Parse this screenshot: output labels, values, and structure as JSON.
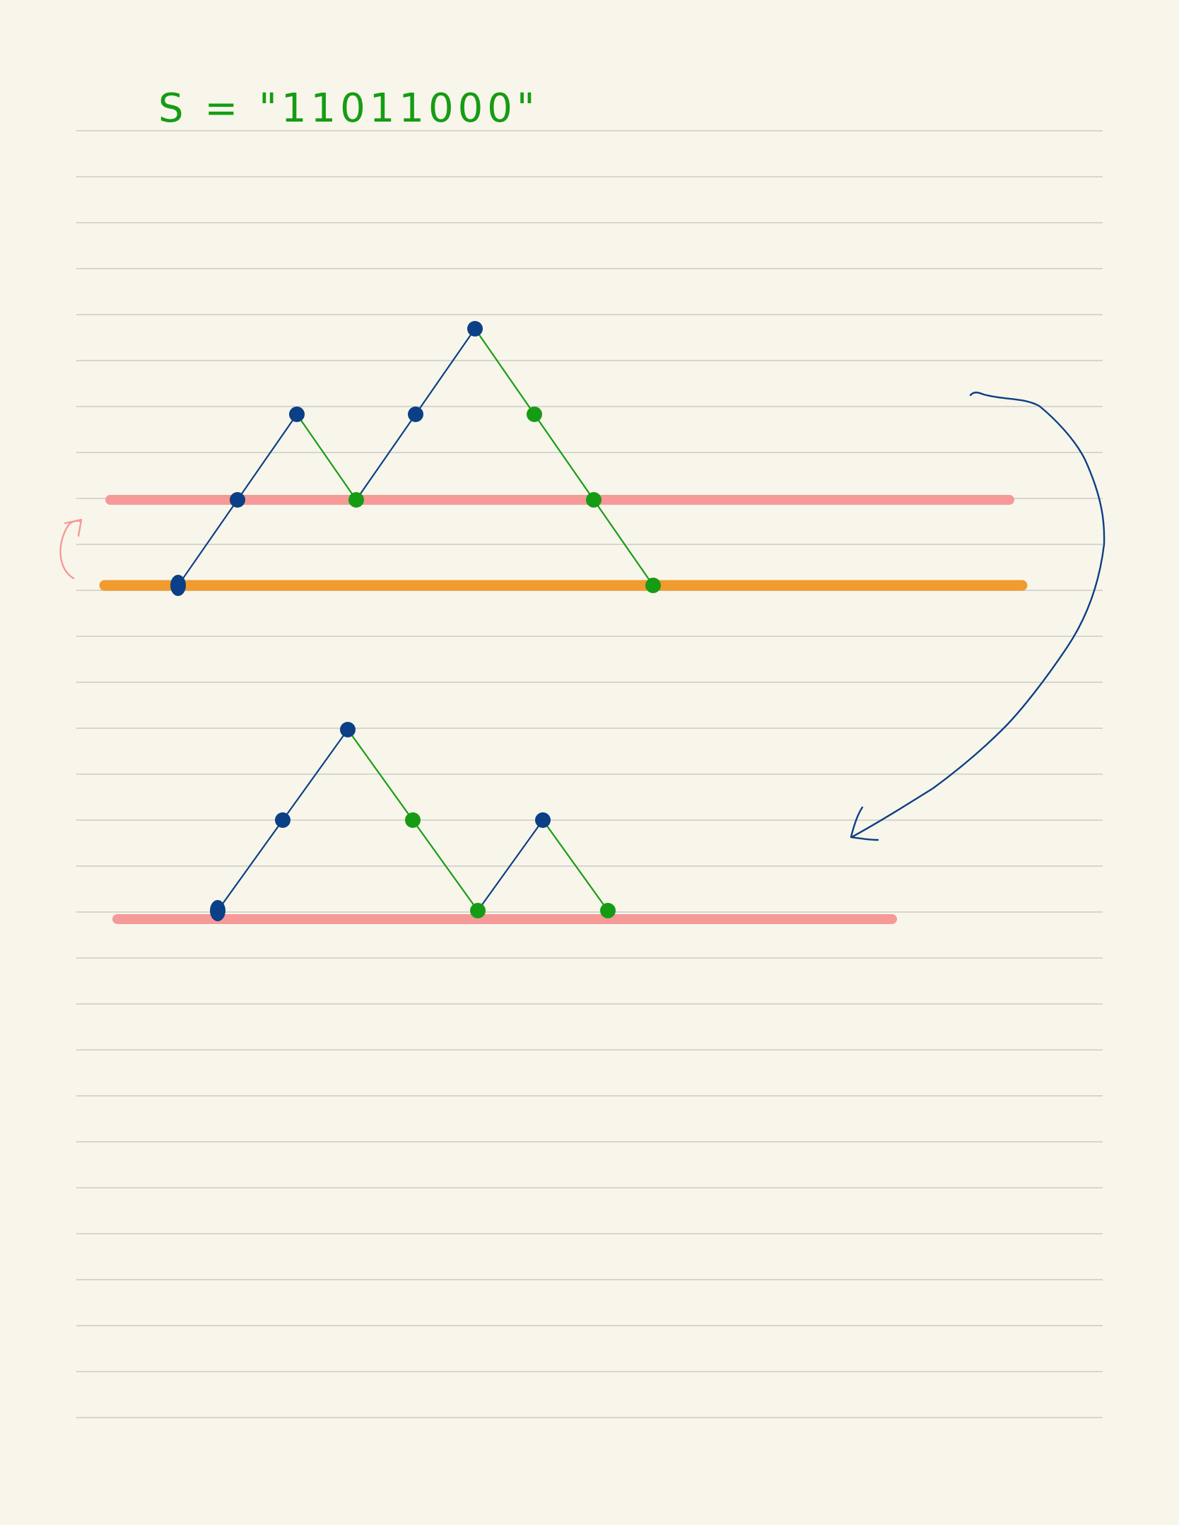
{
  "notebook": {
    "heading_text": "S = \"11011000\"",
    "colors": {
      "paper": "#f8f6ea",
      "ruled_line": "#d6d5d0",
      "up_step_ink": "#0b3f86",
      "down_step_ink": "#159c14",
      "level_highlight_pink": "#f59a98",
      "level_highlight_orange": "#f19a2e",
      "arrow_ink": "#0b3f86",
      "curl_arrow_ink": "#f59a98"
    },
    "icons": {
      "curl_arrow": "curved-arrow-up-icon",
      "transform_arrow": "curved-arrow-down-left-icon"
    }
  },
  "chart_data": [
    {
      "type": "line",
      "description_of_steps": [
        "1",
        "1",
        "0",
        "1",
        "1",
        "0",
        "0",
        "0"
      ],
      "x": [
        0,
        1,
        2,
        3,
        4,
        5,
        6,
        7,
        8
      ],
      "y": [
        0,
        1,
        2,
        1,
        2,
        3,
        2,
        1,
        0
      ],
      "step_colors": [
        "blue",
        "blue",
        "green",
        "blue",
        "blue",
        "green",
        "green",
        "green"
      ],
      "baseline_levels": [
        0,
        1
      ]
    },
    {
      "type": "line",
      "x": [
        0,
        1,
        2,
        3,
        4,
        5,
        6
      ],
      "y": [
        0,
        1,
        2,
        1,
        0,
        1,
        0
      ],
      "step_colors": [
        "blue",
        "blue",
        "green",
        "green",
        "blue",
        "green"
      ],
      "baseline_levels": [
        0
      ]
    }
  ]
}
